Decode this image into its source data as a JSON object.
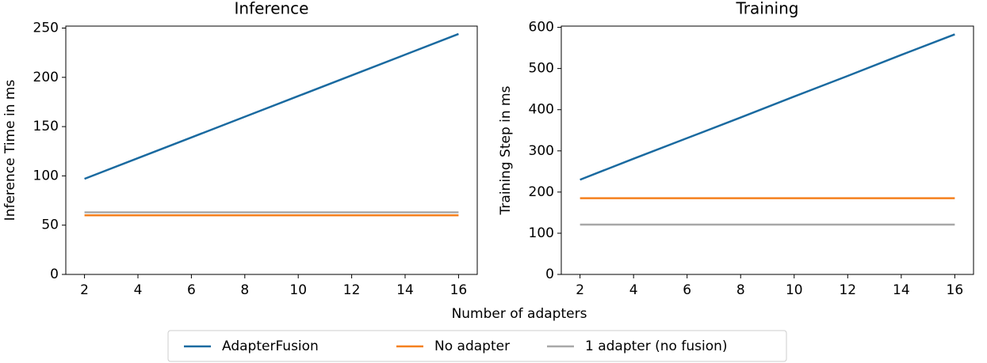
{
  "chart_data": [
    {
      "type": "line",
      "title": "Inference",
      "ylabel": "Inference Time in ms",
      "x": [
        2,
        4,
        6,
        8,
        10,
        12,
        14,
        16
      ],
      "xlim": [
        1.3,
        16.7
      ],
      "xticks": [
        2,
        4,
        6,
        8,
        10,
        12,
        14,
        16
      ],
      "ylim": [
        0,
        252
      ],
      "yticks": [
        0,
        50,
        100,
        150,
        200,
        250
      ],
      "series": [
        {
          "name": "AdapterFusion",
          "color": "#1a6aa0",
          "values": [
            97,
            118,
            139,
            160,
            181,
            202,
            223,
            244
          ]
        },
        {
          "name": "No adapter",
          "color": "#f5801e",
          "values": [
            60,
            60,
            60,
            60,
            60,
            60,
            60,
            60
          ]
        },
        {
          "name": "1 adapter (no fusion)",
          "color": "#a8a8a8",
          "values": [
            63,
            63,
            63,
            63,
            63,
            63,
            63,
            63
          ]
        }
      ]
    },
    {
      "type": "line",
      "title": "Training",
      "ylabel": "Training Step in ms",
      "x": [
        2,
        4,
        6,
        8,
        10,
        12,
        14,
        16
      ],
      "xlim": [
        1.3,
        16.7
      ],
      "xticks": [
        2,
        4,
        6,
        8,
        10,
        12,
        14,
        16
      ],
      "ylim": [
        0,
        603
      ],
      "yticks": [
        0,
        100,
        200,
        300,
        400,
        500,
        600
      ],
      "series": [
        {
          "name": "AdapterFusion",
          "color": "#1a6aa0",
          "values": [
            230,
            281,
            331,
            381,
            432,
            482,
            533,
            583
          ]
        },
        {
          "name": "No adapter",
          "color": "#f5801e",
          "values": [
            185,
            185,
            185,
            185,
            185,
            185,
            185,
            185
          ]
        },
        {
          "name": "1 adapter (no fusion)",
          "color": "#a8a8a8",
          "values": [
            121,
            121,
            121,
            121,
            121,
            121,
            121,
            121
          ]
        }
      ]
    }
  ],
  "xlabel": "Number of adapters"
}
